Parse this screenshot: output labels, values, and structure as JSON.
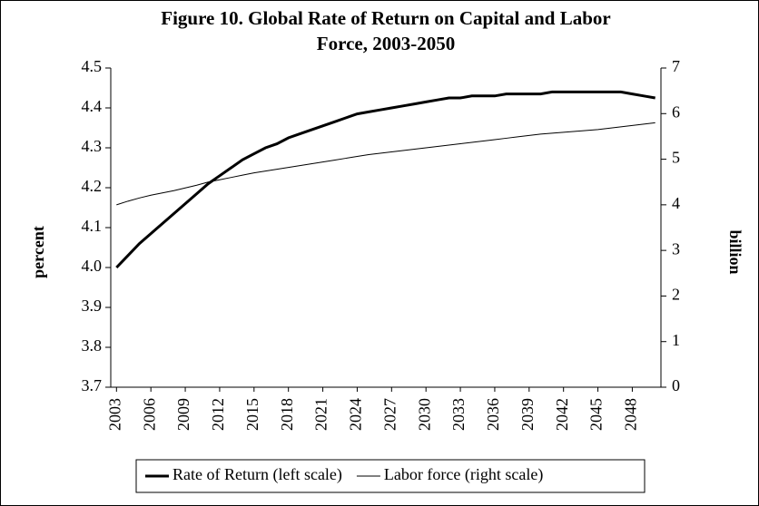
{
  "chart_data": {
    "type": "line",
    "title": [
      "Figure 10. Global Rate of Return on Capital and Labor",
      "Force, 2003-2050"
    ],
    "y_label": "percent",
    "y2_label": "billion",
    "x": [
      2003,
      2004,
      2005,
      2006,
      2007,
      2008,
      2009,
      2010,
      2011,
      2012,
      2013,
      2014,
      2015,
      2016,
      2017,
      2018,
      2019,
      2020,
      2021,
      2022,
      2023,
      2024,
      2025,
      2026,
      2027,
      2028,
      2029,
      2030,
      2031,
      2032,
      2033,
      2034,
      2035,
      2036,
      2037,
      2038,
      2039,
      2040,
      2041,
      2042,
      2043,
      2044,
      2045,
      2046,
      2047,
      2048,
      2049,
      2050
    ],
    "xlim": [
      2002.5,
      2050.5
    ],
    "xticks": [
      2003,
      2006,
      2009,
      2012,
      2015,
      2018,
      2021,
      2024,
      2027,
      2030,
      2033,
      2036,
      2039,
      2042,
      2045,
      2048
    ],
    "ylim": [
      3.7,
      4.5
    ],
    "yticks": [
      {
        "value": 3.7,
        "label": "3.7"
      },
      {
        "value": 3.8,
        "label": "3.8"
      },
      {
        "value": 3.9,
        "label": "3.9"
      },
      {
        "value": 4.0,
        "label": "4.0"
      },
      {
        "value": 4.1,
        "label": "4.1"
      },
      {
        "value": 4.2,
        "label": "4.2"
      },
      {
        "value": 4.3,
        "label": "4.3"
      },
      {
        "value": 4.4,
        "label": "4.4"
      },
      {
        "value": 4.5,
        "label": "4.5"
      }
    ],
    "y2lim": [
      0,
      7
    ],
    "y2ticks": [
      0,
      1,
      2,
      3,
      4,
      5,
      6,
      7
    ],
    "legend": "bottom",
    "series": [
      {
        "name": "Rate of Return (left scale)",
        "color": "#000000",
        "width": 3,
        "values": [
          4.0,
          4.03,
          4.06,
          4.085,
          4.11,
          4.135,
          4.16,
          4.185,
          4.21,
          4.23,
          4.25,
          4.27,
          4.285,
          4.3,
          4.31,
          4.325,
          4.335,
          4.345,
          4.355,
          4.365,
          4.375,
          4.385,
          4.39,
          4.395,
          4.4,
          4.405,
          4.41,
          4.415,
          4.42,
          4.425,
          4.425,
          4.43,
          4.43,
          4.43,
          4.435,
          4.435,
          4.435,
          4.435,
          4.44,
          4.44,
          4.44,
          4.44,
          4.44,
          4.44,
          4.44,
          4.435,
          4.43,
          4.425
        ]
      },
      {
        "name": "Labor force (right scale)",
        "color": "#000000",
        "width": 1,
        "axis": "y2",
        "values": [
          4.0,
          4.08,
          4.15,
          4.21,
          4.26,
          4.31,
          4.37,
          4.43,
          4.5,
          4.55,
          4.6,
          4.65,
          4.7,
          4.74,
          4.78,
          4.82,
          4.86,
          4.9,
          4.94,
          4.98,
          5.02,
          5.06,
          5.1,
          5.13,
          5.16,
          5.19,
          5.22,
          5.25,
          5.28,
          5.31,
          5.34,
          5.37,
          5.4,
          5.43,
          5.46,
          5.49,
          5.52,
          5.55,
          5.57,
          5.59,
          5.61,
          5.63,
          5.65,
          5.68,
          5.71,
          5.74,
          5.77,
          5.8
        ]
      }
    ]
  }
}
